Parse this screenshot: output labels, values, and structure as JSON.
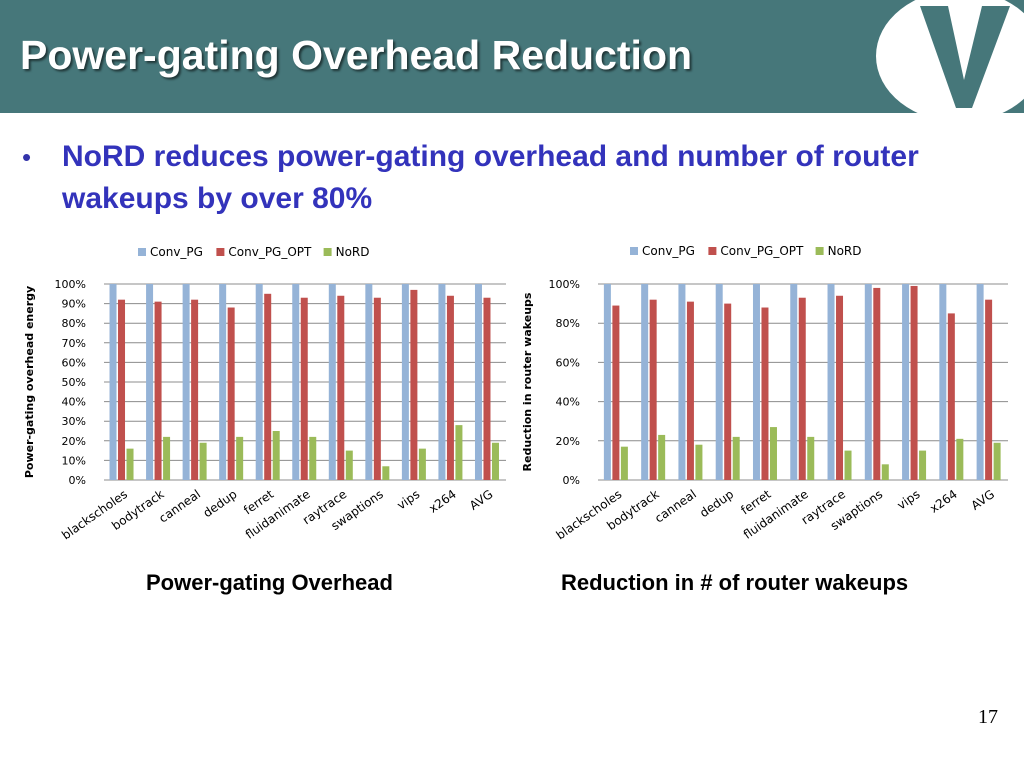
{
  "slide": {
    "title": "Power-gating Overhead Reduction",
    "bullet": "NoRD reduces power-gating overhead and number of router wakeups by over 80%",
    "bullet_symbol": "•",
    "page_number": "17",
    "header_color": "#46777a",
    "bullet_color": "#3333bb"
  },
  "captions": {
    "left": "Power-gating Overhead",
    "right": "Reduction in # of router wakeups"
  },
  "chart_data": [
    {
      "type": "bar",
      "ylabel": "Power-gating overhead energy",
      "ylim": [
        0,
        100
      ],
      "yticks": [
        0,
        10,
        20,
        30,
        40,
        50,
        60,
        70,
        80,
        90,
        100
      ],
      "categories": [
        "blackscholes",
        "bodytrack",
        "canneal",
        "dedup",
        "ferret",
        "fluidanimate",
        "raytrace",
        "swaptions",
        "vips",
        "x264",
        "AVG"
      ],
      "series": [
        {
          "name": "Conv_PG",
          "color": "#95b3d7",
          "values": [
            100,
            100,
            100,
            100,
            100,
            100,
            100,
            100,
            100,
            100,
            100
          ]
        },
        {
          "name": "Conv_PG_OPT",
          "color": "#c0504d",
          "values": [
            92,
            91,
            92,
            88,
            95,
            93,
            94,
            93,
            97,
            94,
            93
          ]
        },
        {
          "name": "NoRD",
          "color": "#9bbb59",
          "values": [
            16,
            22,
            19,
            22,
            25,
            22,
            15,
            7,
            16,
            28,
            19
          ]
        }
      ],
      "legend": "top",
      "grid": true
    },
    {
      "type": "bar",
      "ylabel": "Reduction in router wakeups",
      "ylim": [
        0,
        100
      ],
      "yticks": [
        0,
        20,
        40,
        60,
        80,
        100
      ],
      "categories": [
        "blackscholes",
        "bodytrack",
        "canneal",
        "dedup",
        "ferret",
        "fluidanimate",
        "raytrace",
        "swaptions",
        "vips",
        "x264",
        "AVG"
      ],
      "series": [
        {
          "name": "Conv_PG",
          "color": "#95b3d7",
          "values": [
            100,
            100,
            100,
            100,
            100,
            100,
            100,
            100,
            100,
            100,
            100
          ]
        },
        {
          "name": "Conv_PG_OPT",
          "color": "#c0504d",
          "values": [
            89,
            92,
            91,
            90,
            88,
            93,
            94,
            98,
            99,
            85,
            92
          ]
        },
        {
          "name": "NoRD",
          "color": "#9bbb59",
          "values": [
            17,
            23,
            18,
            22,
            27,
            22,
            15,
            8,
            15,
            21,
            19
          ]
        }
      ],
      "legend": "top",
      "grid": true
    }
  ]
}
